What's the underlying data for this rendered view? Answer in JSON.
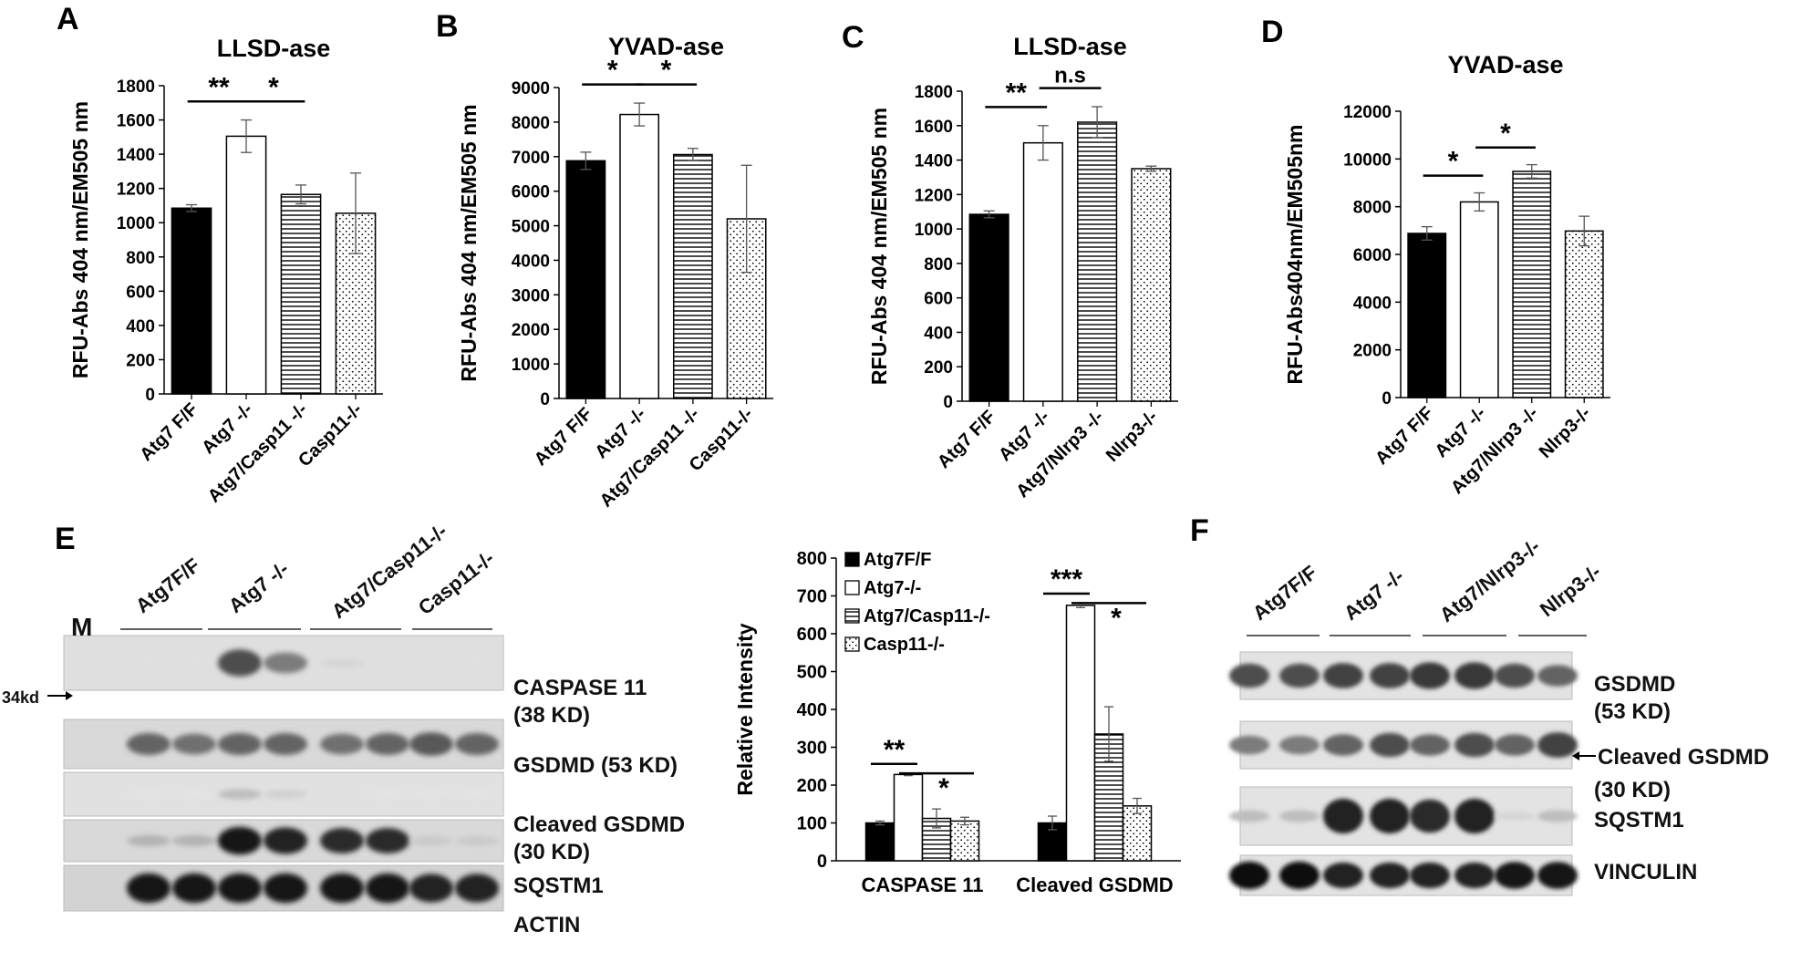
{
  "colors": {
    "black_bar": "#000000",
    "white_bar": "#ffffff",
    "axis": "#000000"
  },
  "chart_data": [
    {
      "panel": "A",
      "type": "bar",
      "title": "LLSD-ase",
      "ylabel": "RFU-Abs 404 nm/EM505 nm",
      "ylim": [
        0,
        1800
      ],
      "ystep": 200,
      "categories": [
        "Atg7 F/F",
        "Atg7 -/-",
        "Atg7/Casp11 -/-",
        "Casp11-/-"
      ],
      "values": [
        1085,
        1505,
        1165,
        1055
      ],
      "errors": [
        20,
        95,
        55,
        235
      ],
      "patterns": [
        "solid",
        "white",
        "hlines",
        "dots"
      ],
      "significance": [
        {
          "from": 0,
          "to": 1,
          "label": "**"
        },
        {
          "from": 1,
          "to": 2,
          "label": "*"
        }
      ]
    },
    {
      "panel": "B",
      "type": "bar",
      "title": "YVAD-ase",
      "ylabel": "RFU-Abs 404 nm/EM505 nm",
      "ylim": [
        0,
        9000
      ],
      "ystep": 1000,
      "categories": [
        "Atg7 F/F",
        "Atg7 -/-",
        "Atg7/Casp11 -/-",
        "Casp11-/-"
      ],
      "values": [
        6880,
        8220,
        7060,
        5200
      ],
      "errors": [
        250,
        330,
        180,
        1550
      ],
      "patterns": [
        "solid",
        "white",
        "hlines",
        "dots"
      ],
      "significance": [
        {
          "from": 0,
          "to": 1,
          "label": "*"
        },
        {
          "from": 1,
          "to": 2,
          "label": "*"
        }
      ]
    },
    {
      "panel": "C",
      "type": "bar",
      "title": "LLSD-ase",
      "ylabel": "RFU-Abs 404 nm/EM505 nm",
      "ylim": [
        0,
        1800
      ],
      "ystep": 200,
      "categories": [
        "Atg7 F/F",
        "Atg7 -/-",
        "Atg7/Nlrp3 -/-",
        "Nlrp3-/-"
      ],
      "values": [
        1085,
        1500,
        1620,
        1350
      ],
      "errors": [
        20,
        100,
        90,
        15
      ],
      "patterns": [
        "solid",
        "white",
        "hlines",
        "dots"
      ],
      "significance": [
        {
          "from": 0,
          "to": 1,
          "label": "**"
        },
        {
          "from": 1,
          "to": 2,
          "label": "n.s"
        }
      ]
    },
    {
      "panel": "D",
      "type": "bar",
      "title": "YVAD-ase",
      "ylabel": "RFU-Abs404nm/EM505nm",
      "ylim": [
        0,
        12000
      ],
      "ystep": 2000,
      "categories": [
        "Atg7 F/F",
        "Atg7 -/-",
        "Atg7/Nlrp3 -/-",
        "Nlrp3-/-"
      ],
      "values": [
        6880,
        8200,
        9480,
        6980
      ],
      "errors": [
        280,
        380,
        280,
        620
      ],
      "patterns": [
        "solid",
        "white",
        "hlines",
        "dots"
      ],
      "significance": [
        {
          "from": 0,
          "to": 1,
          "label": "*"
        },
        {
          "from": 1,
          "to": 2,
          "label": "*"
        }
      ]
    },
    {
      "panel": "E-quant",
      "type": "bar",
      "title": "",
      "ylabel": "Relative Intensity",
      "ylim": [
        0,
        800
      ],
      "ystep": 100,
      "categories": [
        "CASPASE 11",
        "Cleaved GSDMD"
      ],
      "series": [
        {
          "name": "Atg7F/F",
          "values": [
            100,
            100
          ],
          "errors": [
            5,
            18
          ]
        },
        {
          "name": "Atg7-/-",
          "values": [
            228,
            675
          ],
          "errors": [
            3,
            6
          ]
        },
        {
          "name": "Atg7/Casp11-/-",
          "values": [
            112,
            335
          ],
          "errors": [
            25,
            72
          ]
        },
        {
          "name": "Casp11-/-",
          "values": [
            105,
            145
          ],
          "errors": [
            10,
            20
          ]
        }
      ],
      "patterns": [
        "solid",
        "white",
        "hlines",
        "dots"
      ],
      "legend_position": "top-left",
      "significance": [
        {
          "group": 0,
          "from": 0,
          "to": 1,
          "label": "**"
        },
        {
          "group": 0,
          "from": 1,
          "to": 3,
          "label": "*"
        },
        {
          "group": 1,
          "from": 0,
          "to": 1,
          "label": "***"
        },
        {
          "group": 1,
          "from": 1,
          "to": 3,
          "label": "*"
        }
      ]
    }
  ],
  "blot_E": {
    "panel": "E",
    "marker_label": "M",
    "marker_size": "34kd",
    "groups": [
      "Atg7F/F",
      "Atg7 -/-",
      "Atg7/Casp11-/-",
      "Casp11-/-"
    ],
    "rows": [
      {
        "label": "CASPASE 11\n(38 KD)",
        "intensities": [
          0.05,
          0.05,
          0.7,
          0.5,
          0.1,
          0.05,
          0.05,
          0.05
        ]
      },
      {
        "label": "GSDMD (53 KD)",
        "intensities": [
          0.6,
          0.55,
          0.6,
          0.6,
          0.55,
          0.6,
          0.65,
          0.6
        ]
      },
      {
        "label": "Cleaved GSDMD\n(30 KD)",
        "intensities": [
          0.03,
          0.03,
          0.2,
          0.12,
          0.05,
          0.03,
          0.03,
          0.03
        ]
      },
      {
        "label": "SQSTM1",
        "intensities": [
          0.25,
          0.25,
          0.95,
          0.9,
          0.85,
          0.85,
          0.15,
          0.15
        ]
      },
      {
        "label": "ACTIN",
        "intensities": [
          0.95,
          0.95,
          0.95,
          0.95,
          0.95,
          0.95,
          0.9,
          0.9
        ]
      }
    ]
  },
  "blot_F": {
    "panel": "F",
    "groups": [
      "Atg7F/F",
      "Atg7 -/-",
      "Atg7/Nlrp3-/-",
      "Nlrp3-/-"
    ],
    "cleaved_arrow_label": "Cleaved GSDMD",
    "rows": [
      {
        "label": "GSDMD\n(53 KD)",
        "intensities": [
          0.7,
          0.7,
          0.75,
          0.75,
          0.8,
          0.8,
          0.7,
          0.6
        ]
      },
      {
        "label": "(30 KD)",
        "intensities": [
          0.5,
          0.5,
          0.6,
          0.7,
          0.6,
          0.7,
          0.6,
          0.75
        ]
      },
      {
        "label": "SQSTM1",
        "intensities": [
          0.2,
          0.2,
          0.9,
          0.9,
          0.85,
          0.9,
          0.1,
          0.2
        ]
      },
      {
        "label": "VINCULIN",
        "intensities": [
          0.98,
          0.98,
          0.9,
          0.9,
          0.9,
          0.9,
          0.95,
          0.95
        ]
      }
    ]
  }
}
